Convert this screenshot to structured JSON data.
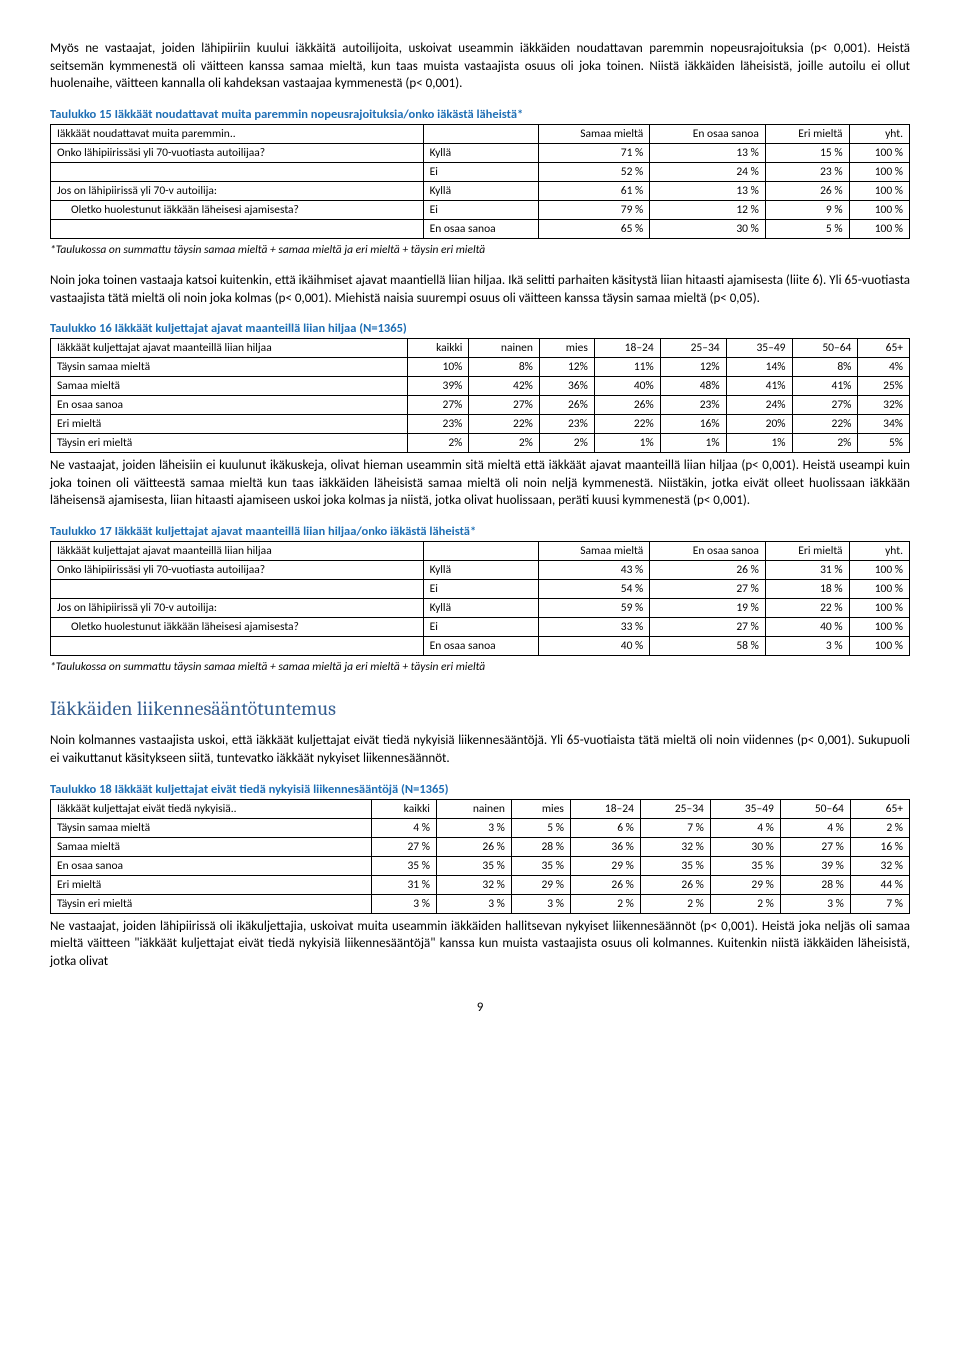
{
  "para1": "Myös ne vastaajat, joiden lähipiiriin kuului iäkkäitä autoilijoita, uskoivat useammin iäkkäiden noudattavan paremmin nopeusrajoituksia (p< 0,001). Heistä seitsemän kymmenestä oli väitteen kanssa samaa mieltä, kun taas muista vastaajista osuus oli joka toinen. Niistä iäkkäiden läheisistä, joille autoilu ei ollut huolenaihe, väitteen kannalla oli kahdeksan vastaajaa kymmenestä (p< 0,001).",
  "t15_title": "Taulukko 15 Iäkkäät noudattavat muita paremmin nopeusrajoituksia/onko iäkästä läheistä*",
  "t15": {
    "h": [
      "Iäkkäät noudattavat muita paremmin..",
      "",
      "Samaa mieltä",
      "En osaa sanoa",
      "Eri mieltä",
      "yht."
    ],
    "rows": [
      [
        "Onko lähipiirissäsi yli 70-vuotiasta autoilijaa?",
        "Kyllä",
        "71 %",
        "13 %",
        "15 %",
        "100 %"
      ],
      [
        "",
        "Ei",
        "52 %",
        "24 %",
        "23 %",
        "100 %"
      ],
      [
        "Jos on lähipiirissä yli 70-v autoilija:",
        "Kyllä",
        "61 %",
        "13 %",
        "26 %",
        "100 %"
      ],
      [
        "Oletko huolestunut iäkkään läheisesi ajamisesta?",
        "Ei",
        "79 %",
        "12 %",
        "9 %",
        "100 %"
      ],
      [
        "",
        "En osaa sanoa",
        "65 %",
        "30 %",
        "5 %",
        "100 %"
      ]
    ]
  },
  "fnote": "*Taulukossa on summattu täysin samaa mieltä + samaa mieltä ja eri mieltä + täysin eri mieltä",
  "para2": "Noin joka toinen vastaaja katsoi kuitenkin, että ikäihmiset ajavat maantiellä liian hiljaa. Ikä selitti parhaiten käsitystä liian hitaasti ajamisesta (liite 6). Yli 65-vuotiasta vastaajista tätä mieltä oli noin joka kolmas (p< 0,001). Miehistä naisia suurempi osuus oli väitteen kanssa täysin samaa mieltä (p< 0,05).",
  "t16_title": "Taulukko 16 Iäkkäät kuljettajat ajavat maanteillä liian hiljaa (N=1365)",
  "t16": {
    "h": [
      "Iäkkäät kuljettajat ajavat maanteillä liian hiljaa",
      "kaikki",
      "nainen",
      "mies",
      "18–24",
      "25–34",
      "35–49",
      "50–64",
      "65+"
    ],
    "rows": [
      [
        "Täysin samaa mieltä",
        "10%",
        "8%",
        "12%",
        "11%",
        "12%",
        "14%",
        "8%",
        "4%"
      ],
      [
        "Samaa mieltä",
        "39%",
        "42%",
        "36%",
        "40%",
        "48%",
        "41%",
        "41%",
        "25%"
      ],
      [
        "En osaa sanoa",
        "27%",
        "27%",
        "26%",
        "26%",
        "23%",
        "24%",
        "27%",
        "32%"
      ],
      [
        "Eri mieltä",
        "23%",
        "22%",
        "23%",
        "22%",
        "16%",
        "20%",
        "22%",
        "34%"
      ],
      [
        "Täysin eri mieltä",
        "2%",
        "2%",
        "2%",
        "1%",
        "1%",
        "1%",
        "2%",
        "5%"
      ]
    ]
  },
  "para3": "Ne vastaajat, joiden läheisiin ei kuulunut ikäkuskeja, olivat hieman useammin sitä mieltä että iäkkäät ajavat maanteillä liian hiljaa (p< 0,001). Heistä useampi kuin joka toinen oli väitteestä samaa mieltä kun taas iäkkäiden läheisistä samaa mieltä oli noin neljä kymmenestä. Niistäkin, jotka eivät olleet huolissaan iäkkään läheisensä ajamisesta, liian hitaasti ajamiseen uskoi joka kolmas ja niistä, jotka olivat huolissaan, peräti kuusi kymmenestä (p< 0,001).",
  "t17_title": "Taulukko 17 Iäkkäät kuljettajat ajavat maanteillä liian hiljaa/onko iäkästä läheistä*",
  "t17": {
    "h": [
      "Iäkkäät kuljettajat ajavat maanteillä liian hiljaa",
      "",
      "Samaa mieltä",
      "En osaa sanoa",
      "Eri mieltä",
      "yht."
    ],
    "rows": [
      [
        "Onko lähipiirissäsi yli 70-vuotiasta autoilijaa?",
        "Kyllä",
        "43 %",
        "26 %",
        "31 %",
        "100 %"
      ],
      [
        "",
        "Ei",
        "54 %",
        "27 %",
        "18 %",
        "100 %"
      ],
      [
        "Jos on lähipiirissä yli 70-v autoilija:",
        "Kyllä",
        "59 %",
        "19 %",
        "22 %",
        "100 %"
      ],
      [
        "Oletko huolestunut iäkkään läheisesi ajamisesta?",
        "Ei",
        "33 %",
        "27 %",
        "40 %",
        "100 %"
      ],
      [
        "",
        "En osaa sanoa",
        "40 %",
        "58 %",
        "3 %",
        "100 %"
      ]
    ]
  },
  "section": "Iäkkäiden liikennesääntötuntemus",
  "para4": "Noin kolmannes vastaajista uskoi, että iäkkäät kuljettajat eivät tiedä nykyisiä liikennesääntöjä. Yli 65-vuotiaista tätä mieltä oli noin viidennes (p< 0,001). Sukupuoli ei vaikuttanut käsitykseen siitä, tuntevatko iäkkäät nykyiset liikennesäännöt.",
  "t18_title": "Taulukko 18 Iäkkäät kuljettajat eivät tiedä nykyisiä liikennesääntöjä (N=1365)",
  "t18": {
    "h": [
      "Iäkkäät kuljettajat eivät tiedä nykyisiä..",
      "kaikki",
      "nainen",
      "mies",
      "18–24",
      "25–34",
      "35–49",
      "50–64",
      "65+"
    ],
    "rows": [
      [
        "Täysin samaa mieltä",
        "4 %",
        "3 %",
        "5 %",
        "6 %",
        "7 %",
        "4 %",
        "4 %",
        "2 %"
      ],
      [
        "Samaa mieltä",
        "27 %",
        "26 %",
        "28 %",
        "36 %",
        "32 %",
        "30 %",
        "27 %",
        "16 %"
      ],
      [
        "En osaa sanoa",
        "35 %",
        "35 %",
        "35 %",
        "29 %",
        "35 %",
        "35 %",
        "39 %",
        "32 %"
      ],
      [
        "Eri mieltä",
        "31 %",
        "32 %",
        "29 %",
        "26 %",
        "26 %",
        "29 %",
        "28 %",
        "44 %"
      ],
      [
        "Täysin eri mieltä",
        "3 %",
        "3 %",
        "3 %",
        "2 %",
        "2 %",
        "2 %",
        "3 %",
        "7 %"
      ]
    ]
  },
  "para5": "Ne vastaajat, joiden lähipiirissä oli ikäkuljettajia, uskoivat muita useammin iäkkäiden hallitsevan nykyiset liikennesäännöt (p< 0,001). Heistä joka neljäs oli samaa mieltä väitteen \"iäkkäät kuljettajat eivät tiedä nykyisiä liikennesääntöjä\" kanssa kun muista vastaajista osuus oli kolmannes. Kuitenkin niistä iäkkäiden läheisistä, jotka olivat",
  "pagenum": "9"
}
